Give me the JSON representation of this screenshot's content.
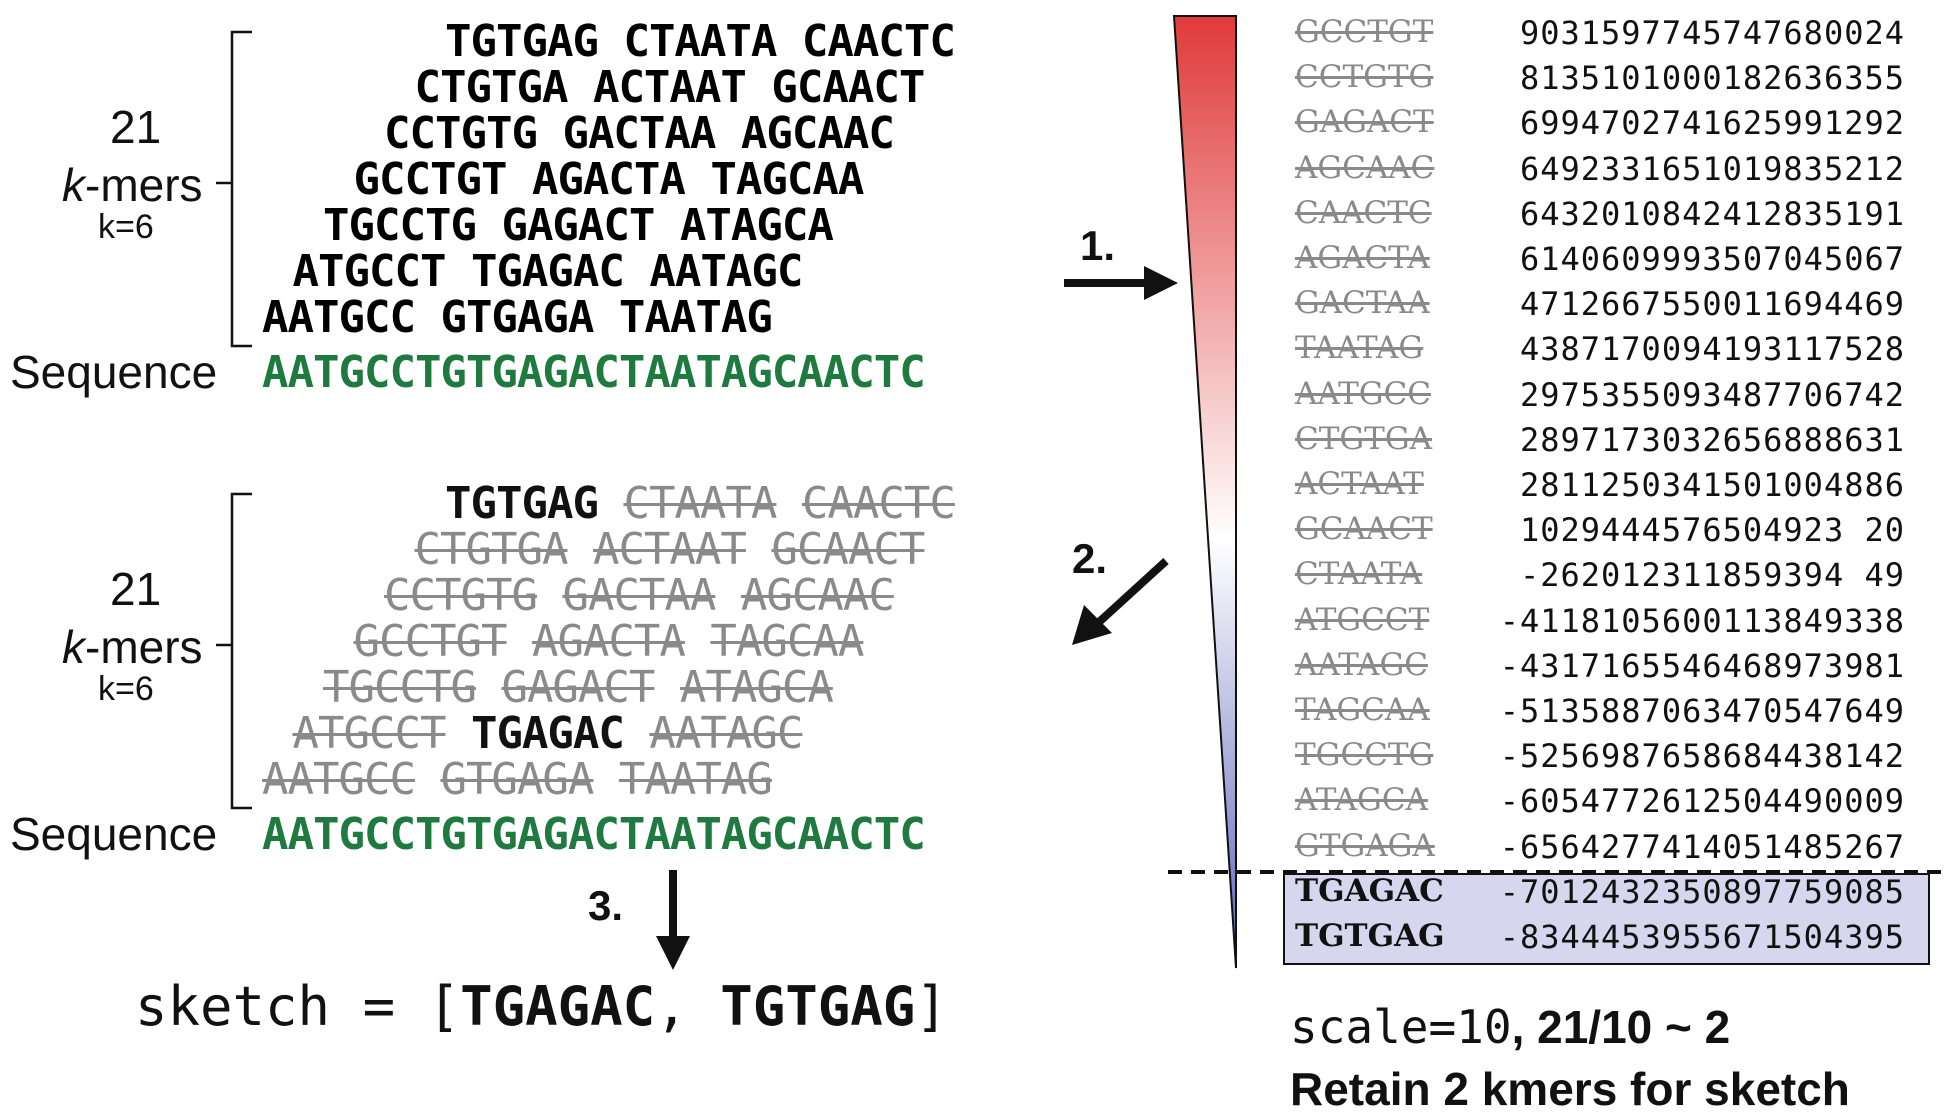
{
  "panel_top": {
    "kmers_label": {
      "count": "21",
      "name_italic": "k",
      "name_rest": "-mers",
      "k": "k=6"
    },
    "sequence_label": "Sequence",
    "sequence": "AATGCCTGTGAGACTAATAGCAACTC",
    "rows": [
      [
        "TGTGAG",
        "CTAATA",
        "CAACTC"
      ],
      [
        "CTGTGA",
        "ACTAAT",
        "GCAACT"
      ],
      [
        "CCTGTG",
        "GACTAA",
        "AGCAAC"
      ],
      [
        "GCCTGT",
        "AGACTA",
        "TAGCAA"
      ],
      [
        "TGCCTG",
        "GAGACT",
        "ATAGCA"
      ],
      [
        "ATGCCT",
        "TGAGAC",
        "AATAGC"
      ],
      [
        "AATGCC",
        "GTGAGA",
        "TAATAG"
      ]
    ]
  },
  "panel_bottom": {
    "kmers_label": {
      "count": "21",
      "name_italic": "k",
      "name_rest": "-mers",
      "k": "k=6"
    },
    "sequence_label": "Sequence",
    "sequence": "AATGCCTGTGAGACTAATAGCAACTC",
    "rows": [
      [
        {
          "t": "TGTGAG",
          "kept": true
        },
        {
          "t": "CTAATA",
          "kept": false
        },
        {
          "t": "CAACTC",
          "kept": false
        }
      ],
      [
        {
          "t": "CTGTGA",
          "kept": false
        },
        {
          "t": "ACTAAT",
          "kept": false
        },
        {
          "t": "GCAACT",
          "kept": false
        }
      ],
      [
        {
          "t": "CCTGTG",
          "kept": false
        },
        {
          "t": "GACTAA",
          "kept": false
        },
        {
          "t": "AGCAAC",
          "kept": false
        }
      ],
      [
        {
          "t": "GCCTGT",
          "kept": false
        },
        {
          "t": "AGACTA",
          "kept": false
        },
        {
          "t": "TAGCAA",
          "kept": false
        }
      ],
      [
        {
          "t": "TGCCTG",
          "kept": false
        },
        {
          "t": "GAGACT",
          "kept": false
        },
        {
          "t": "ATAGCA",
          "kept": false
        }
      ],
      [
        {
          "t": "ATGCCT",
          "kept": false
        },
        {
          "t": "TGAGAC",
          "kept": true
        },
        {
          "t": "AATAGC",
          "kept": false
        }
      ],
      [
        {
          "t": "AATGCC",
          "kept": false
        },
        {
          "t": "GTGAGA",
          "kept": false
        },
        {
          "t": "TAATAG",
          "kept": false
        }
      ]
    ]
  },
  "steps": {
    "one": "1.",
    "two": "2.",
    "three": "3."
  },
  "hash_table": [
    {
      "kmer": "GCCTGT",
      "hash": "9031597745747680024",
      "kept": false
    },
    {
      "kmer": "CCTGTG",
      "hash": "8135101000182636355",
      "kept": false
    },
    {
      "kmer": "GAGACT",
      "hash": "6994702741625991292",
      "kept": false
    },
    {
      "kmer": "AGCAAC",
      "hash": "6492331651019835212",
      "kept": false
    },
    {
      "kmer": "CAACTC",
      "hash": "6432010842412835191",
      "kept": false
    },
    {
      "kmer": "AGACTA",
      "hash": "6140609993507045067",
      "kept": false
    },
    {
      "kmer": "GACTAA",
      "hash": "4712667550011694469",
      "kept": false
    },
    {
      "kmer": "TAATAG",
      "hash": "4387170094193117528",
      "kept": false
    },
    {
      "kmer": "AATGCC",
      "hash": "2975355093487706742",
      "kept": false
    },
    {
      "kmer": "CTGTGA",
      "hash": "2897173032656888631",
      "kept": false
    },
    {
      "kmer": "ACTAAT",
      "hash": "2811250341501004886",
      "kept": false
    },
    {
      "kmer": "GCAACT",
      "hash": "1029444576504923 20",
      "kept": false
    },
    {
      "kmer": "CTAATA",
      "hash": "-262012311859394 49",
      "kept": false
    },
    {
      "kmer": "ATGCCT",
      "hash": "-4118105600113849338",
      "kept": false
    },
    {
      "kmer": "AATAGC",
      "hash": "-4317165546468973981",
      "kept": false
    },
    {
      "kmer": "TAGCAA",
      "hash": "-5135887063470547649",
      "kept": false
    },
    {
      "kmer": "TGCCTG",
      "hash": "-5256987658684438142",
      "kept": false
    },
    {
      "kmer": "ATAGCA",
      "hash": "-6054772612504490009",
      "kept": false
    },
    {
      "kmer": "GTGAGA",
      "hash": "-6564277414051485267",
      "kept": false
    },
    {
      "kmer": "TGAGAC",
      "hash": "-7012432350897759085",
      "kept": true
    },
    {
      "kmer": "TGTGAG",
      "hash": "-8344453955671504395",
      "kept": true
    }
  ],
  "sketch": {
    "prefix": "sketch = [",
    "items": [
      "TGAGAC",
      "TGTGAG"
    ],
    "sep": ", ",
    "suffix": "]"
  },
  "caption": {
    "mono": "scale=10",
    "rest": ", 21/10 ~ 2",
    "line2": "Retain 2 kmers for sketch"
  },
  "colors": {
    "sequence": "#1e7a3e",
    "gradient_top": "#e03a3a",
    "gradient_mid": "#ffffff",
    "gradient_bottom": "#5a63b8",
    "highlight": "#d6d7ee"
  }
}
